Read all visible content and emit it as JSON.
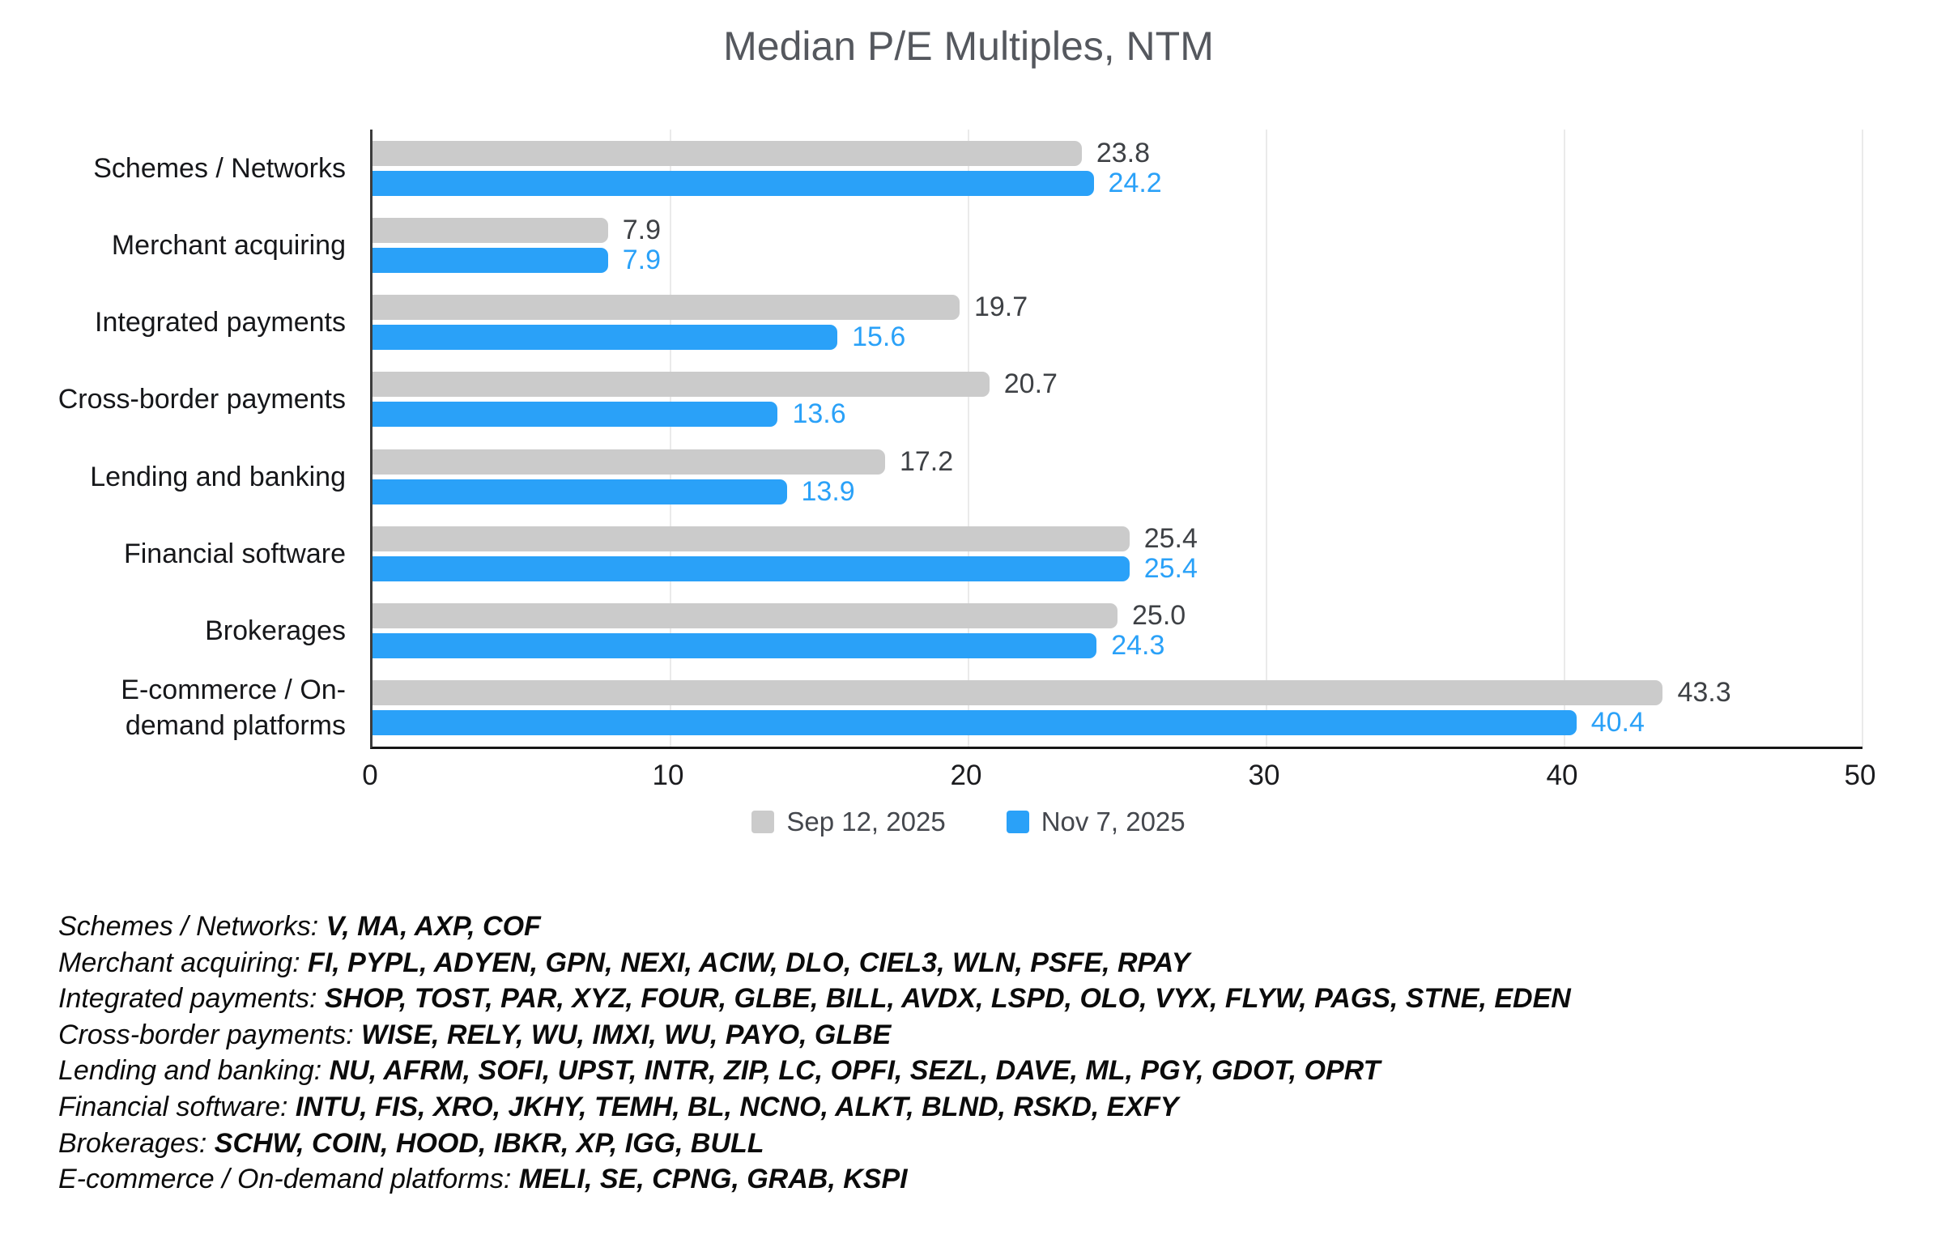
{
  "title": "Median P/E Multiples, NTM",
  "chart_data": {
    "type": "bar",
    "orientation": "horizontal",
    "title": "Median P/E Multiples, NTM",
    "categories": [
      "Schemes / Networks",
      "Merchant acquiring",
      "Integrated payments",
      "Cross-border payments",
      "Lending and banking",
      "Financial software",
      "Brokerages",
      "E-commerce / On-demand platforms"
    ],
    "series": [
      {
        "name": "Sep 12, 2025",
        "color": "#cbcbcb",
        "label_color": "#3e4145",
        "values": [
          23.8,
          7.9,
          19.7,
          20.7,
          17.2,
          25.4,
          25.0,
          43.3
        ]
      },
      {
        "name": "Nov 7, 2025",
        "color": "#2aa1f8",
        "label_color": "#2aa1f8",
        "values": [
          24.2,
          7.9,
          15.6,
          13.6,
          13.9,
          25.4,
          24.3,
          40.4
        ]
      }
    ],
    "xlim": [
      0,
      50
    ],
    "xticks": [
      0,
      10,
      20,
      30,
      40,
      50
    ],
    "grid": true,
    "legend_position": "bottom"
  },
  "footnotes": [
    {
      "label": "Schemes / Networks",
      "tickers": "V, MA, AXP, COF"
    },
    {
      "label": "Merchant acquiring",
      "tickers": "FI, PYPL, ADYEN, GPN, NEXI, ACIW, DLO, CIEL3, WLN, PSFE, RPAY"
    },
    {
      "label": "Integrated payments",
      "tickers": "SHOP, TOST, PAR, XYZ, FOUR, GLBE, BILL, AVDX, LSPD, OLO, VYX, FLYW, PAGS, STNE, EDEN"
    },
    {
      "label": "Cross-border payments",
      "tickers": "WISE, RELY, WU, IMXI, WU, PAYO, GLBE"
    },
    {
      "label": "Lending and banking",
      "tickers": "NU, AFRM, SOFI, UPST, INTR, ZIP, LC, OPFI, SEZL, DAVE, ML, PGY, GDOT, OPRT"
    },
    {
      "label": "Financial software",
      "tickers": "INTU, FIS, XRO, JKHY, TEMH, BL, NCNO, ALKT, BLND, RSKD, EXFY"
    },
    {
      "label": "Brokerages",
      "tickers": "SCHW, COIN, HOOD, IBKR, XP, IGG, BULL"
    },
    {
      "label": "E-commerce / On-demand platforms",
      "tickers": "MELI, SE, CPNG, GRAB, KSPI"
    }
  ]
}
